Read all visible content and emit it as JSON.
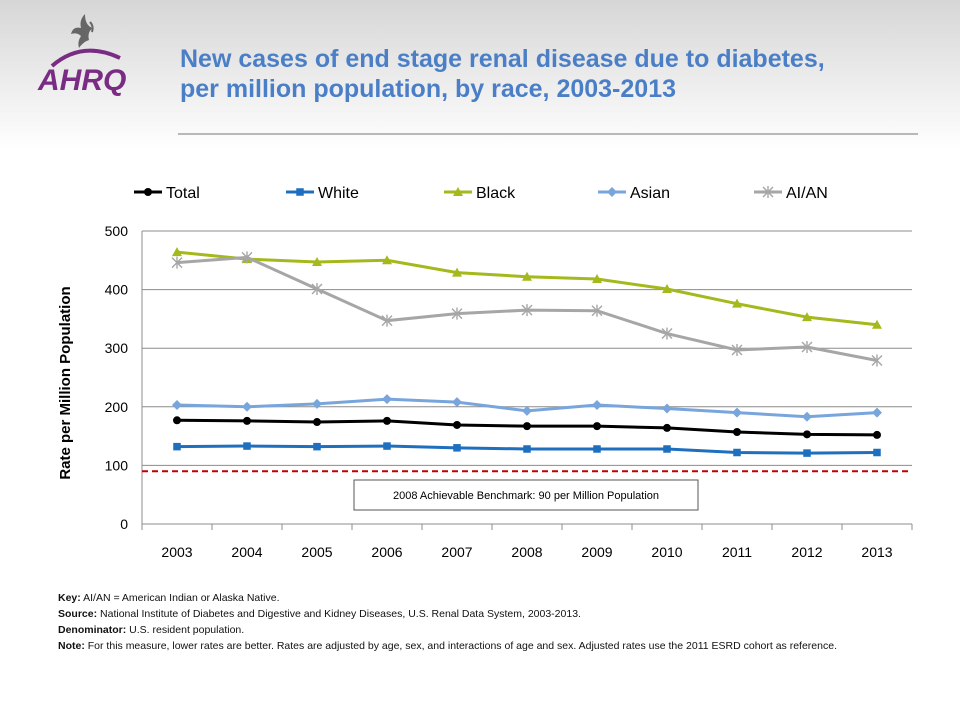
{
  "logo": {
    "text": "AHRQ",
    "brand_color": "#7a2c84",
    "seal_icon": "hhs-eagle-icon"
  },
  "title": {
    "line1": "New cases of end stage renal disease due to diabetes,",
    "line2": "per million population, by race, 2003-2013"
  },
  "chart_data": {
    "type": "line",
    "ylabel": "Rate per Million Population",
    "xlabel": "",
    "x": [
      "2003",
      "2004",
      "2005",
      "2006",
      "2007",
      "2008",
      "2009",
      "2010",
      "2011",
      "2012",
      "2013"
    ],
    "ylim": [
      0,
      500
    ],
    "yticks": [
      "0",
      "100",
      "200",
      "300",
      "400",
      "500"
    ],
    "grid": true,
    "legend_position": "top",
    "series": [
      {
        "name": "Total",
        "color": "#000000",
        "marker": "circle",
        "values": [
          177,
          176,
          174,
          176,
          169,
          167,
          167,
          164,
          157,
          153,
          152
        ]
      },
      {
        "name": "White",
        "color": "#1f6fbf",
        "marker": "square",
        "values": [
          132,
          133,
          132,
          133,
          130,
          128,
          128,
          128,
          122,
          121,
          122
        ]
      },
      {
        "name": "Black",
        "color": "#a5b81c",
        "marker": "triangle",
        "values": [
          464,
          452,
          447,
          450,
          429,
          422,
          418,
          401,
          376,
          353,
          340
        ]
      },
      {
        "name": "Asian",
        "color": "#78a5dc",
        "marker": "diamond",
        "values": [
          203,
          200,
          205,
          213,
          208,
          193,
          203,
          197,
          190,
          183,
          190
        ]
      },
      {
        "name": "AI/AN",
        "color": "#a6a6a6",
        "marker": "star",
        "values": [
          446,
          455,
          401,
          347,
          359,
          365,
          364,
          325,
          297,
          302,
          279
        ]
      }
    ],
    "benchmark": {
      "value": 90,
      "color": "#c00000",
      "label": "2008 Achievable Benchmark:  90 per Million Population"
    }
  },
  "notes": {
    "key_label": "Key:",
    "key_text": "AI/AN = American Indian or Alaska Native.",
    "source_label": "Source:",
    "source_text": "National Institute of Diabetes and Digestive and Kidney Diseases, U.S. Renal Data System, 2003-2013.",
    "denominator_label": "Denominator:",
    "denominator_text": "U.S. resident population.",
    "note_label": "Note:",
    "note_text": "For this measure, lower rates are better. Rates are adjusted by age, sex, and interactions of age and sex. Adjusted rates use the 2011 ESRD cohort as reference."
  }
}
